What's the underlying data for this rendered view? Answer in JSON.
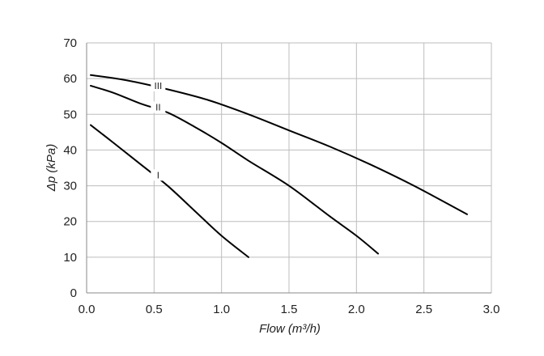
{
  "chart_data": {
    "type": "line",
    "title": "",
    "xlabel": "Flow (m³/h)",
    "ylabel": "Δp (kPa)",
    "xlim": [
      0,
      3.0
    ],
    "ylim": [
      0,
      70
    ],
    "grid": true,
    "x_ticks": [
      0.0,
      0.5,
      1.0,
      1.5,
      2.0,
      2.5,
      3.0
    ],
    "x_tick_labels": [
      "0.0",
      "0.5",
      "1.0",
      "1.5",
      "2.0",
      "2.5",
      "3.0"
    ],
    "y_ticks": [
      0,
      10,
      20,
      30,
      40,
      50,
      60,
      70
    ],
    "y_tick_labels": [
      "0",
      "10",
      "20",
      "30",
      "40",
      "50",
      "60",
      "70"
    ],
    "series": [
      {
        "name": "I",
        "label_at": [
          0.53,
          33
        ],
        "points": [
          [
            0.03,
            47
          ],
          [
            0.2,
            42
          ],
          [
            0.4,
            36
          ],
          [
            0.6,
            30
          ],
          [
            0.8,
            23
          ],
          [
            1.0,
            16
          ],
          [
            1.2,
            10
          ]
        ]
      },
      {
        "name": "II",
        "label_at": [
          0.53,
          52
        ],
        "points": [
          [
            0.03,
            58
          ],
          [
            0.2,
            56
          ],
          [
            0.4,
            53
          ],
          [
            0.6,
            50.5
          ],
          [
            0.8,
            46.5
          ],
          [
            1.0,
            42
          ],
          [
            1.2,
            37
          ],
          [
            1.5,
            30
          ],
          [
            1.8,
            21.5
          ],
          [
            2.0,
            16
          ],
          [
            2.16,
            11
          ]
        ]
      },
      {
        "name": "III",
        "label_at": [
          0.53,
          58
        ],
        "points": [
          [
            0.03,
            61
          ],
          [
            0.3,
            59.5
          ],
          [
            0.6,
            57
          ],
          [
            0.9,
            54
          ],
          [
            1.2,
            50
          ],
          [
            1.5,
            45.5
          ],
          [
            1.8,
            41
          ],
          [
            2.1,
            36
          ],
          [
            2.4,
            30.5
          ],
          [
            2.6,
            26.5
          ],
          [
            2.82,
            22
          ]
        ]
      }
    ]
  }
}
